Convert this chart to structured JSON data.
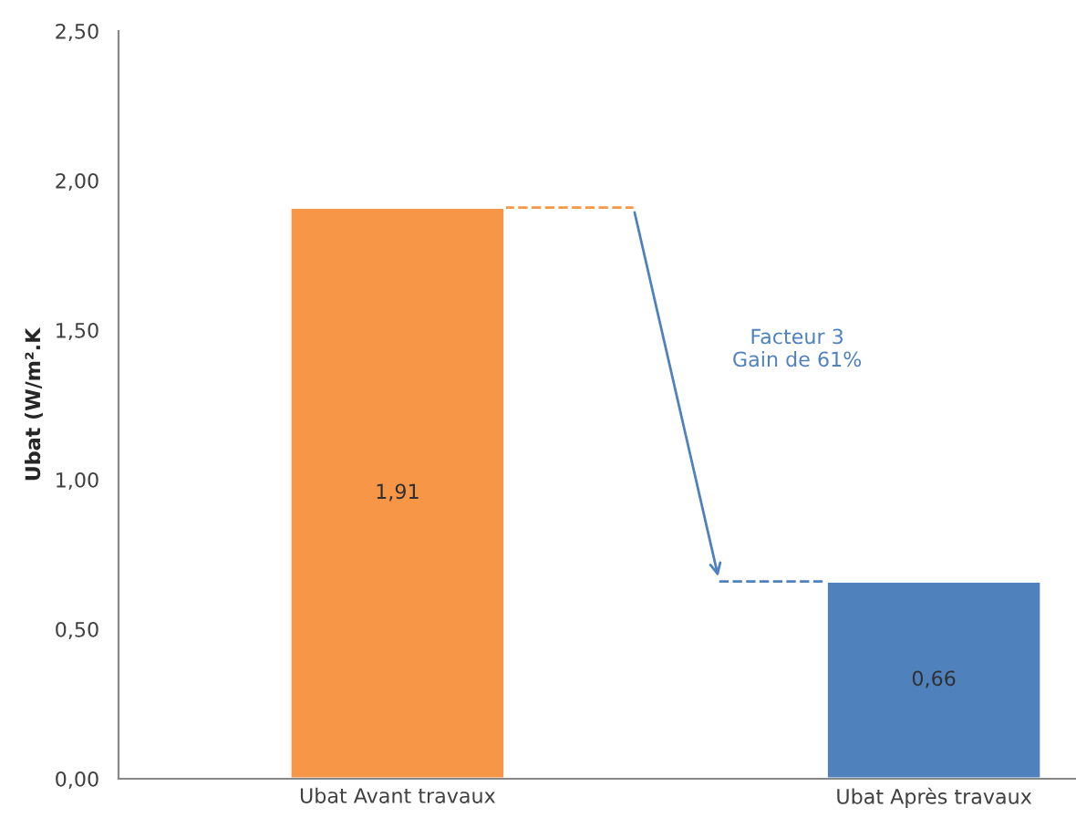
{
  "chart_data": {
    "type": "bar",
    "ylabel": "Ubat (W/m².K",
    "categories": [
      "Ubat Avant travaux",
      "Ubat Après travaux"
    ],
    "values": [
      1.91,
      0.66
    ],
    "colors": [
      "#f79646",
      "#4f81bd"
    ],
    "value_labels": [
      "1,91",
      "0,66"
    ],
    "ylim": [
      0,
      2.5
    ],
    "yticks": [
      {
        "value": 0,
        "label": "0,00"
      },
      {
        "value": 0.5,
        "label": "0,50"
      },
      {
        "value": 1,
        "label": "1,00"
      },
      {
        "value": 1.5,
        "label": "1,50"
      },
      {
        "value": 2,
        "label": "2,00"
      },
      {
        "value": 2.5,
        "label": "2,50"
      }
    ],
    "annotations": [
      "Facteur 3\nGain de 61%"
    ],
    "grid": false,
    "legend": false
  }
}
